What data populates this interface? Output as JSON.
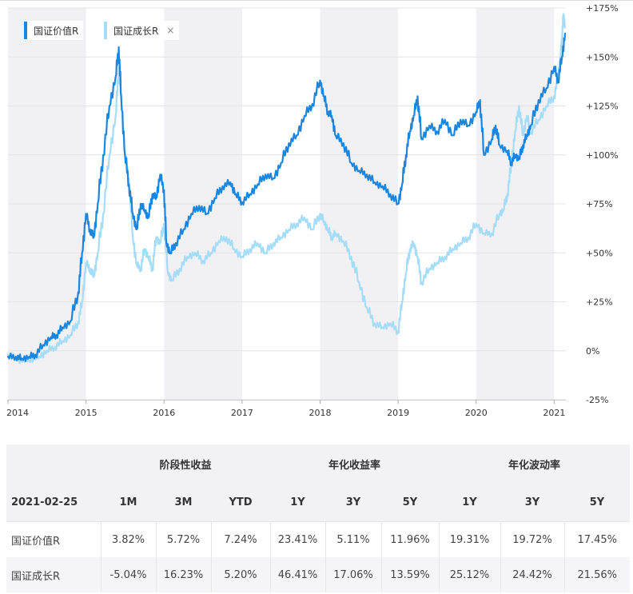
{
  "legend": [
    {
      "label": "国证价值R",
      "color": "#1a86e0",
      "closable": false
    },
    {
      "label": "国证成长R",
      "color": "#a5dcf7",
      "closable": true
    }
  ],
  "legend_close_glyph": "×",
  "chart_data": {
    "type": "line",
    "y_axis_position": "right",
    "ylim": [
      -25,
      175
    ],
    "yticks": [
      -25,
      0,
      25,
      50,
      75,
      100,
      125,
      150,
      175
    ],
    "ytick_labels": [
      "-25%",
      "0%",
      "+25%",
      "+50%",
      "+75%",
      "+100%",
      "+125%",
      "+150%",
      "+175%"
    ],
    "xlim": [
      2014.0,
      2021.14
    ],
    "xticks": [
      2014,
      2015,
      2016,
      2017,
      2018,
      2019,
      2020,
      2021
    ],
    "xtick_labels": [
      "2014",
      "2015",
      "2016",
      "2017",
      "2018",
      "2019",
      "2020",
      "2021"
    ],
    "shaded_years": [
      2014,
      2016,
      2018,
      2020
    ],
    "grid": true,
    "legend_position": "top-left",
    "series": [
      {
        "name": "国证价值R",
        "color": "#1a86e0",
        "x": [
          2014.0,
          2014.1,
          2014.18,
          2014.27,
          2014.35,
          2014.45,
          2014.55,
          2014.62,
          2014.7,
          2014.8,
          2014.9,
          2014.95,
          2015.0,
          2015.05,
          2015.1,
          2015.15,
          2015.22,
          2015.3,
          2015.38,
          2015.42,
          2015.45,
          2015.5,
          2015.55,
          2015.6,
          2015.65,
          2015.7,
          2015.75,
          2015.8,
          2015.85,
          2015.9,
          2015.95,
          2016.0,
          2016.03,
          2016.08,
          2016.15,
          2016.25,
          2016.35,
          2016.45,
          2016.55,
          2016.65,
          2016.75,
          2016.85,
          2016.92,
          2017.0,
          2017.1,
          2017.2,
          2017.3,
          2017.4,
          2017.5,
          2017.6,
          2017.7,
          2017.8,
          2017.9,
          2018.0,
          2018.05,
          2018.1,
          2018.15,
          2018.2,
          2018.3,
          2018.4,
          2018.5,
          2018.6,
          2018.7,
          2018.8,
          2018.9,
          2019.0,
          2019.05,
          2019.1,
          2019.15,
          2019.2,
          2019.25,
          2019.3,
          2019.4,
          2019.5,
          2019.6,
          2019.7,
          2019.8,
          2019.9,
          2020.0,
          2020.05,
          2020.1,
          2020.2,
          2020.25,
          2020.3,
          2020.4,
          2020.45,
          2020.5,
          2020.55,
          2020.6,
          2020.65,
          2020.7,
          2020.8,
          2020.9,
          2021.0,
          2021.05,
          2021.1,
          2021.14
        ],
        "values": [
          -3,
          -3,
          -4,
          -3,
          -2,
          3,
          7,
          8,
          12,
          15,
          30,
          50,
          70,
          62,
          58,
          75,
          100,
          125,
          140,
          155,
          130,
          100,
          85,
          70,
          62,
          75,
          72,
          68,
          80,
          78,
          90,
          82,
          55,
          50,
          55,
          62,
          70,
          74,
          70,
          78,
          84,
          86,
          80,
          76,
          80,
          85,
          90,
          88,
          96,
          106,
          110,
          120,
          126,
          138,
          130,
          122,
          120,
          110,
          106,
          96,
          92,
          90,
          86,
          84,
          80,
          75,
          85,
          100,
          112,
          120,
          130,
          108,
          115,
          112,
          118,
          110,
          118,
          115,
          122,
          128,
          100,
          108,
          115,
          105,
          102,
          96,
          100,
          98,
          105,
          110,
          115,
          128,
          134,
          145,
          138,
          150,
          162
        ]
      },
      {
        "name": "国证成长R",
        "color": "#a5dcf7",
        "x": [
          2014.0,
          2014.1,
          2014.2,
          2014.3,
          2014.4,
          2014.5,
          2014.6,
          2014.7,
          2014.8,
          2014.9,
          2014.95,
          2015.0,
          2015.05,
          2015.1,
          2015.15,
          2015.22,
          2015.3,
          2015.38,
          2015.42,
          2015.45,
          2015.5,
          2015.55,
          2015.6,
          2015.65,
          2015.7,
          2015.75,
          2015.8,
          2015.85,
          2015.9,
          2015.95,
          2016.0,
          2016.05,
          2016.1,
          2016.2,
          2016.3,
          2016.4,
          2016.5,
          2016.6,
          2016.7,
          2016.8,
          2016.9,
          2017.0,
          2017.1,
          2017.2,
          2017.3,
          2017.4,
          2017.5,
          2017.6,
          2017.7,
          2017.8,
          2017.9,
          2018.0,
          2018.05,
          2018.1,
          2018.15,
          2018.2,
          2018.3,
          2018.4,
          2018.5,
          2018.6,
          2018.7,
          2018.8,
          2018.9,
          2019.0,
          2019.05,
          2019.1,
          2019.15,
          2019.2,
          2019.25,
          2019.3,
          2019.4,
          2019.5,
          2019.6,
          2019.7,
          2019.8,
          2019.9,
          2020.0,
          2020.1,
          2020.2,
          2020.3,
          2020.35,
          2020.4,
          2020.45,
          2020.5,
          2020.55,
          2020.6,
          2020.65,
          2020.7,
          2020.8,
          2020.9,
          2021.0,
          2021.05,
          2021.08,
          2021.1,
          2021.12,
          2021.14
        ],
        "values": [
          -2,
          -4,
          -5,
          -4,
          -3,
          0,
          2,
          5,
          8,
          15,
          25,
          45,
          42,
          38,
          50,
          70,
          100,
          120,
          145,
          130,
          100,
          88,
          58,
          44,
          42,
          52,
          48,
          42,
          58,
          55,
          65,
          40,
          36,
          42,
          48,
          50,
          46,
          50,
          56,
          58,
          52,
          48,
          52,
          55,
          50,
          55,
          58,
          62,
          65,
          68,
          62,
          70,
          66,
          62,
          58,
          60,
          56,
          48,
          35,
          22,
          14,
          12,
          14,
          10,
          25,
          40,
          52,
          55,
          48,
          35,
          42,
          45,
          48,
          52,
          55,
          58,
          65,
          60,
          60,
          70,
          72,
          80,
          95,
          112,
          125,
          110,
          120,
          112,
          118,
          125,
          130,
          140,
          150,
          160,
          172,
          165
        ]
      }
    ]
  },
  "table": {
    "group_headers": [
      "阶段性收益",
      "年化收益率",
      "年化波动率"
    ],
    "date_label": "2021-02-25",
    "columns": [
      "1M",
      "3M",
      "YTD",
      "1Y",
      "3Y",
      "5Y",
      "1Y",
      "3Y",
      "5Y"
    ],
    "rows": [
      {
        "name": "国证价值R",
        "values": [
          "3.82%",
          "5.72%",
          "7.24%",
          "23.41%",
          "5.11%",
          "11.96%",
          "19.31%",
          "19.72%",
          "17.45%"
        ]
      },
      {
        "name": "国证成长R",
        "values": [
          "-5.04%",
          "16.23%",
          "5.20%",
          "46.41%",
          "17.06%",
          "13.59%",
          "25.12%",
          "24.42%",
          "21.56%"
        ]
      }
    ]
  }
}
